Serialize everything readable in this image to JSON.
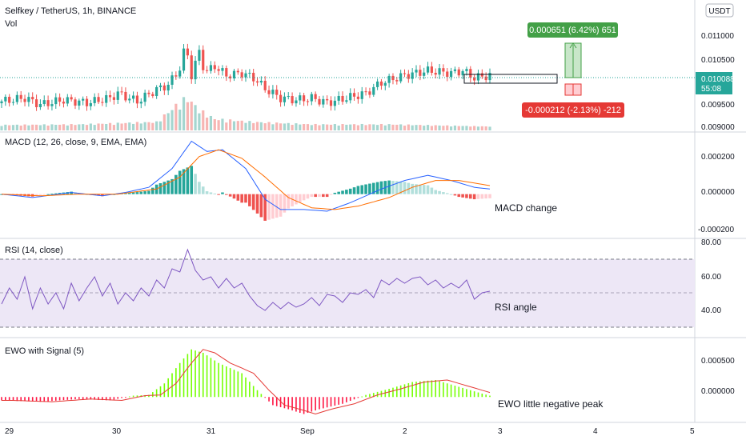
{
  "header": {
    "symbol_line": "Selfkey / TetherUS, 1h, BINANCE",
    "vol_label": "Vol",
    "currency_badge": "USDT"
  },
  "price_axis": {
    "ticks": [
      "0.011000",
      "0.010500",
      "0.010000",
      "0.009500",
      "0.009000"
    ],
    "current_price": "0.010088",
    "countdown": "55:08",
    "current_color": "#26a69a"
  },
  "measure": {
    "up_label": "0.000651 (6.42%) 651",
    "down_label": "-0.000212 (-2.13%) -212",
    "up_color": "#43a047",
    "down_color": "#e53935"
  },
  "panes": {
    "macd": {
      "title": "MACD (12, 26, close, 9, EMA, EMA)",
      "ticks": [
        "0.000200",
        "0.000000",
        "-0.000200"
      ],
      "annotation": "MACD change"
    },
    "rsi": {
      "title": "RSI (14, close)",
      "ticks": [
        "80.00",
        "60.00",
        "40.00"
      ],
      "annotation": "RSI angle"
    },
    "ewo": {
      "title": "EWO with Signal (5)",
      "ticks": [
        "0.000500",
        "0.000000"
      ],
      "annotation": "EWO little negative peak"
    }
  },
  "time_axis": {
    "labels": [
      "29",
      "30",
      "31",
      "Sep",
      "2",
      "3",
      "4",
      "5"
    ]
  },
  "colors": {
    "up": "#26a69a",
    "down": "#ef5350",
    "macd_line": "#2962ff",
    "signal_line": "#ff6d00",
    "rsi_line": "#7e57c2",
    "rsi_band": "#ede7f6",
    "ewo_up": "#76ff03",
    "ewo_down": "#ff1744",
    "ewo_signal": "#e53935"
  },
  "chart_data": {
    "type": "candlestick",
    "price_range": [
      0.0089,
      0.0117
    ],
    "price_points": [
      {
        "t": 0,
        "p": 0.00955
      },
      {
        "t": 6,
        "p": 0.00962
      },
      {
        "t": 10,
        "p": 0.00948
      },
      {
        "t": 16,
        "p": 0.00958
      },
      {
        "t": 22,
        "p": 0.00952
      },
      {
        "t": 28,
        "p": 0.00962
      },
      {
        "t": 30,
        "p": 0.00972
      },
      {
        "t": 35,
        "p": 0.00955
      },
      {
        "t": 40,
        "p": 0.0098
      },
      {
        "t": 43,
        "p": 0.0099
      },
      {
        "t": 46,
        "p": 0.01025
      },
      {
        "t": 47.5,
        "p": 0.01075
      },
      {
        "t": 49,
        "p": 0.0101
      },
      {
        "t": 51,
        "p": 0.0106
      },
      {
        "t": 52.5,
        "p": 0.01015
      },
      {
        "t": 55,
        "p": 0.0103
      },
      {
        "t": 58,
        "p": 0.0101
      },
      {
        "t": 62,
        "p": 0.01015
      },
      {
        "t": 65,
        "p": 0.01005
      },
      {
        "t": 68,
        "p": 0.00982
      },
      {
        "t": 72,
        "p": 0.00962
      },
      {
        "t": 76,
        "p": 0.00958
      },
      {
        "t": 80,
        "p": 0.00962
      },
      {
        "t": 84,
        "p": 0.00952
      },
      {
        "t": 88,
        "p": 0.0096
      },
      {
        "t": 94,
        "p": 0.00972
      },
      {
        "t": 98,
        "p": 0.00995
      },
      {
        "t": 104,
        "p": 0.0101
      },
      {
        "t": 110,
        "p": 0.0102
      },
      {
        "t": 116,
        "p": 0.01015
      },
      {
        "t": 119,
        "p": 0.0102
      },
      {
        "t": 122,
        "p": 0.01005
      },
      {
        "t": 126,
        "p": 0.0101
      }
    ],
    "volume_points": [
      {
        "t": 0,
        "v": 0.1
      },
      {
        "t": 20,
        "v": 0.12
      },
      {
        "t": 40,
        "v": 0.2
      },
      {
        "t": 46,
        "v": 0.85
      },
      {
        "t": 48,
        "v": 1.0
      },
      {
        "t": 51,
        "v": 0.6
      },
      {
        "t": 55,
        "v": 0.3
      },
      {
        "t": 65,
        "v": 0.2
      },
      {
        "t": 80,
        "v": 0.12
      },
      {
        "t": 100,
        "v": 0.12
      },
      {
        "t": 126,
        "v": 0.05
      }
    ],
    "macd": {
      "range": [
        -0.00025,
        0.00035
      ],
      "macd_points": [
        {
          "t": 0,
          "v": 0.0
        },
        {
          "t": 8,
          "v": -2e-05
        },
        {
          "t": 18,
          "v": 1e-05
        },
        {
          "t": 26,
          "v": -1e-05
        },
        {
          "t": 32,
          "v": 1e-05
        },
        {
          "t": 38,
          "v": 4e-05
        },
        {
          "t": 44,
          "v": 0.00015
        },
        {
          "t": 49,
          "v": 0.00031
        },
        {
          "t": 53,
          "v": 0.00025
        },
        {
          "t": 57,
          "v": 0.00026
        },
        {
          "t": 63,
          "v": 0.00015
        },
        {
          "t": 68,
          "v": -3e-05
        },
        {
          "t": 72,
          "v": -9e-05
        },
        {
          "t": 78,
          "v": -9e-05
        },
        {
          "t": 84,
          "v": -0.0001
        },
        {
          "t": 90,
          "v": -5e-05
        },
        {
          "t": 98,
          "v": 3e-05
        },
        {
          "t": 104,
          "v": 8e-05
        },
        {
          "t": 110,
          "v": 0.00011
        },
        {
          "t": 116,
          "v": 8e-05
        },
        {
          "t": 122,
          "v": 4e-05
        },
        {
          "t": 126,
          "v": 3e-05
        }
      ],
      "signal_points": [
        {
          "t": 0,
          "v": 0.0
        },
        {
          "t": 10,
          "v": -1e-05
        },
        {
          "t": 20,
          "v": 0.0
        },
        {
          "t": 30,
          "v": 0.0
        },
        {
          "t": 40,
          "v": 3e-05
        },
        {
          "t": 46,
          "v": 0.0001
        },
        {
          "t": 51,
          "v": 0.00022
        },
        {
          "t": 56,
          "v": 0.00026
        },
        {
          "t": 62,
          "v": 0.00021
        },
        {
          "t": 68,
          "v": 0.0001
        },
        {
          "t": 74,
          "v": -2e-05
        },
        {
          "t": 80,
          "v": -8e-05
        },
        {
          "t": 86,
          "v": -9e-05
        },
        {
          "t": 92,
          "v": -7e-05
        },
        {
          "t": 100,
          "v": -2e-05
        },
        {
          "t": 106,
          "v": 4e-05
        },
        {
          "t": 112,
          "v": 8e-05
        },
        {
          "t": 118,
          "v": 8e-05
        },
        {
          "t": 126,
          "v": 5e-05
        }
      ]
    },
    "rsi": {
      "range": [
        25,
        85
      ],
      "band": [
        30,
        70
      ],
      "mid": 50,
      "points": [
        {
          "t": 0,
          "v": 45
        },
        {
          "t": 2,
          "v": 55
        },
        {
          "t": 4,
          "v": 48
        },
        {
          "t": 6,
          "v": 62
        },
        {
          "t": 8,
          "v": 42
        },
        {
          "t": 10,
          "v": 55
        },
        {
          "t": 12,
          "v": 45
        },
        {
          "t": 14,
          "v": 52
        },
        {
          "t": 16,
          "v": 42
        },
        {
          "t": 18,
          "v": 58
        },
        {
          "t": 20,
          "v": 47
        },
        {
          "t": 22,
          "v": 55
        },
        {
          "t": 24,
          "v": 62
        },
        {
          "t": 26,
          "v": 50
        },
        {
          "t": 28,
          "v": 58
        },
        {
          "t": 30,
          "v": 45
        },
        {
          "t": 32,
          "v": 52
        },
        {
          "t": 34,
          "v": 47
        },
        {
          "t": 36,
          "v": 55
        },
        {
          "t": 38,
          "v": 50
        },
        {
          "t": 40,
          "v": 60
        },
        {
          "t": 42,
          "v": 55
        },
        {
          "t": 44,
          "v": 67
        },
        {
          "t": 46,
          "v": 65
        },
        {
          "t": 48,
          "v": 79
        },
        {
          "t": 50,
          "v": 66
        },
        {
          "t": 52,
          "v": 60
        },
        {
          "t": 54,
          "v": 62
        },
        {
          "t": 56,
          "v": 55
        },
        {
          "t": 58,
          "v": 61
        },
        {
          "t": 60,
          "v": 55
        },
        {
          "t": 62,
          "v": 58
        },
        {
          "t": 64,
          "v": 50
        },
        {
          "t": 66,
          "v": 44
        },
        {
          "t": 68,
          "v": 41
        },
        {
          "t": 70,
          "v": 46
        },
        {
          "t": 72,
          "v": 42
        },
        {
          "t": 74,
          "v": 46
        },
        {
          "t": 76,
          "v": 43
        },
        {
          "t": 78,
          "v": 45
        },
        {
          "t": 80,
          "v": 49
        },
        {
          "t": 82,
          "v": 44
        },
        {
          "t": 84,
          "v": 51
        },
        {
          "t": 86,
          "v": 50
        },
        {
          "t": 88,
          "v": 46
        },
        {
          "t": 90,
          "v": 52
        },
        {
          "t": 92,
          "v": 51
        },
        {
          "t": 94,
          "v": 54
        },
        {
          "t": 96,
          "v": 49
        },
        {
          "t": 98,
          "v": 60
        },
        {
          "t": 100,
          "v": 57
        },
        {
          "t": 102,
          "v": 61
        },
        {
          "t": 104,
          "v": 58
        },
        {
          "t": 106,
          "v": 61
        },
        {
          "t": 108,
          "v": 62
        },
        {
          "t": 110,
          "v": 57
        },
        {
          "t": 112,
          "v": 60
        },
        {
          "t": 114,
          "v": 55
        },
        {
          "t": 116,
          "v": 58
        },
        {
          "t": 118,
          "v": 55
        },
        {
          "t": 120,
          "v": 60
        },
        {
          "t": 122,
          "v": 48
        },
        {
          "t": 124,
          "v": 52
        },
        {
          "t": 126,
          "v": 53
        }
      ]
    },
    "ewo": {
      "range": [
        -0.00035,
        0.00085
      ],
      "points": [
        {
          "t": 0,
          "v": -5e-05
        },
        {
          "t": 10,
          "v": -7e-05
        },
        {
          "t": 20,
          "v": -3e-05
        },
        {
          "t": 28,
          "v": -5e-05
        },
        {
          "t": 34,
          "v": 2e-05
        },
        {
          "t": 38,
          "v": 3e-05
        },
        {
          "t": 42,
          "v": 0.0002
        },
        {
          "t": 46,
          "v": 0.0005
        },
        {
          "t": 49,
          "v": 0.0007
        },
        {
          "t": 52,
          "v": 0.00065
        },
        {
          "t": 56,
          "v": 0.0005
        },
        {
          "t": 62,
          "v": 0.00035
        },
        {
          "t": 66,
          "v": 0.0001
        },
        {
          "t": 70,
          "v": -0.00012
        },
        {
          "t": 74,
          "v": -0.00018
        },
        {
          "t": 78,
          "v": -0.00025
        },
        {
          "t": 82,
          "v": -0.00018
        },
        {
          "t": 88,
          "v": -0.0001
        },
        {
          "t": 94,
          "v": 3e-05
        },
        {
          "t": 100,
          "v": 0.00012
        },
        {
          "t": 106,
          "v": 0.00022
        },
        {
          "t": 112,
          "v": 0.00025
        },
        {
          "t": 118,
          "v": 0.00015
        },
        {
          "t": 124,
          "v": 5e-05
        },
        {
          "t": 126,
          "v": 2e-05
        }
      ]
    }
  }
}
